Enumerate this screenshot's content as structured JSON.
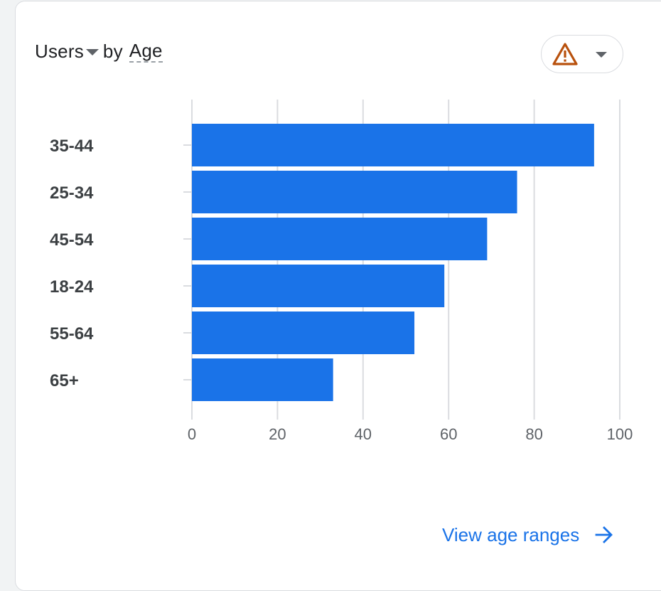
{
  "header": {
    "metric": "Users",
    "by_text": "by",
    "dimension": "Age",
    "warning_icon": "warning-icon",
    "menu_icon": "chevron-down-icon"
  },
  "chart_data": {
    "type": "bar",
    "orientation": "horizontal",
    "categories": [
      "35-44",
      "25-34",
      "45-54",
      "18-24",
      "55-64",
      "65+"
    ],
    "values": [
      94,
      76,
      69,
      59,
      52,
      33
    ],
    "xlim": [
      0,
      100
    ],
    "xticks": [
      0,
      20,
      40,
      60,
      80,
      100
    ],
    "grid": true,
    "bar_color": "#1a73e8"
  },
  "footer": {
    "link_label": "View age ranges",
    "link_icon": "arrow-right-icon"
  },
  "colors": {
    "accent": "#1a73e8",
    "warning": "#b8510d"
  }
}
